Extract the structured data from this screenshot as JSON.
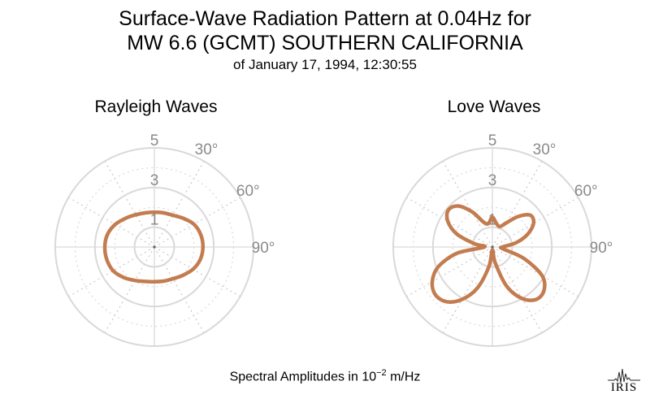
{
  "title": {
    "line1": "Surface-Wave Radiation Pattern at 0.04Hz for",
    "line2": "MW 6.6 (GCMT) SOUTHERN CALIFORNIA",
    "subtitle": "of January 17, 1994, 12:30:55"
  },
  "footer": {
    "text_before": "Spectral Amplitudes in ",
    "base": "10",
    "exponent": "−2",
    "text_after": " m/Hz"
  },
  "logo_text": "IRIS",
  "colors": {
    "curve": "#c37c4f",
    "grid": "#d9d9d9",
    "spoke": "#c8c8c8",
    "tick_label": "#8a8a8a"
  },
  "chart_data": [
    {
      "type": "polar",
      "title": "Rayleigh Waves",
      "radial_ticks": [
        "1",
        "3",
        "5"
      ],
      "radial_tick_values": [
        1,
        3,
        5
      ],
      "rmax": 5,
      "angle_ticks": [
        "30°",
        "60°",
        "90°"
      ],
      "angle_tick_values": [
        30,
        60,
        90
      ],
      "series": [
        {
          "azimuth_deg": [
            0,
            15,
            30,
            45,
            60,
            75,
            90,
            105,
            120,
            135,
            150,
            165,
            180,
            195,
            210,
            225,
            240,
            255,
            270,
            285,
            300,
            315,
            330,
            345
          ],
          "amplitude": [
            1.75,
            1.78,
            1.85,
            2.05,
            2.3,
            2.42,
            2.45,
            2.4,
            2.25,
            2.02,
            1.85,
            1.78,
            1.75,
            1.8,
            1.95,
            2.18,
            2.4,
            2.48,
            2.5,
            2.45,
            2.28,
            2.05,
            1.88,
            1.78
          ]
        }
      ]
    },
    {
      "type": "polar",
      "title": "Love Waves",
      "radial_ticks": [
        "1",
        "3",
        "5"
      ],
      "radial_tick_values": [
        1,
        3,
        5
      ],
      "rmax": 5,
      "angle_ticks": [
        "30°",
        "60°",
        "90°"
      ],
      "angle_tick_values": [
        30,
        60,
        90
      ],
      "series": [
        {
          "azimuth_deg": [
            0,
            10,
            20,
            30,
            40,
            50,
            60,
            70,
            80,
            90,
            100,
            110,
            120,
            130,
            140,
            150,
            160,
            170,
            180,
            190,
            200,
            210,
            220,
            230,
            240,
            250,
            260,
            270,
            280,
            290,
            300,
            310,
            320,
            330,
            340,
            350
          ],
          "amplitude": [
            1.5,
            1.2,
            1.1,
            1.4,
            2.0,
            2.5,
            2.4,
            1.9,
            1.2,
            0.5,
            0.55,
            1.7,
            2.9,
            3.4,
            3.45,
            3.0,
            2.1,
            0.8,
            0.15,
            1.0,
            2.2,
            3.05,
            3.6,
            3.75,
            3.5,
            2.9,
            1.8,
            0.4,
            0.9,
            1.9,
            2.6,
            2.9,
            2.7,
            2.05,
            1.35,
            1.2
          ]
        }
      ]
    }
  ]
}
